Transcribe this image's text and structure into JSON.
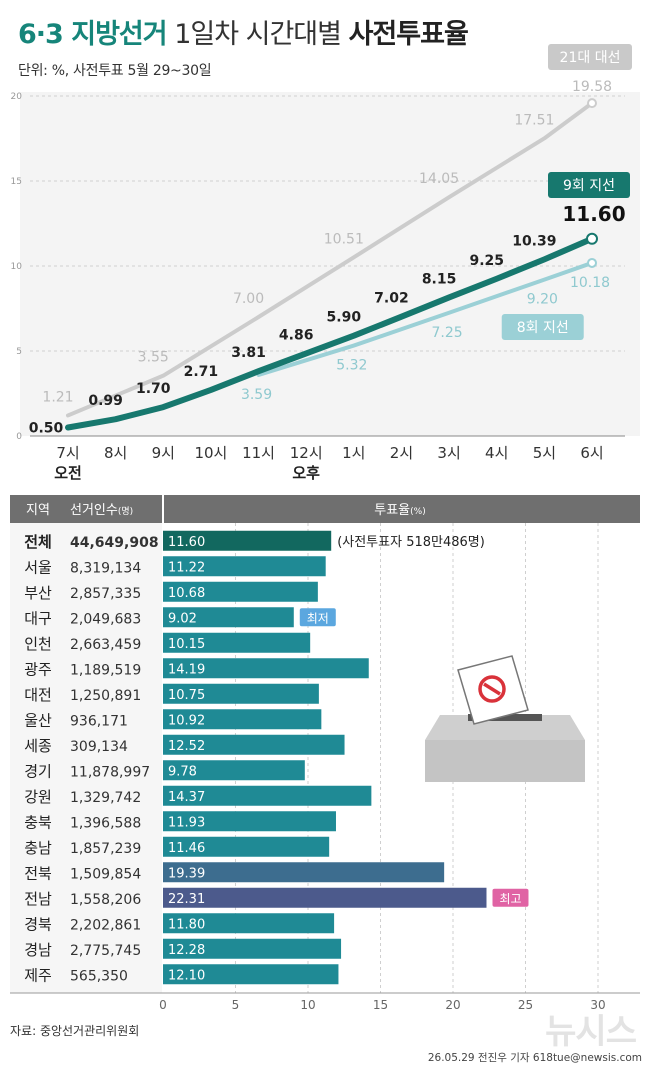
{
  "header": {
    "title_part1": "6·3 지방선거",
    "title_part2": "1일차 시간대별",
    "title_part3": "사전투표율",
    "subtitle": "단위: %, 사전투표 5월 29~30일"
  },
  "colors": {
    "accent": "#16857a",
    "series_9": "#17786e",
    "series_8": "#9bd0d6",
    "series_21": "#cccccc",
    "badge_low": "#5ba7df",
    "badge_high": "#e063a4"
  },
  "chart_data": [
    {
      "type": "line",
      "x": [
        "7시",
        "8시",
        "9시",
        "10시",
        "11시",
        "12시",
        "1시",
        "2시",
        "3시",
        "4시",
        "5시",
        "6시"
      ],
      "x_sublabels": [
        {
          "index": 0,
          "label": "오전"
        },
        {
          "index": 5,
          "label": "오후"
        }
      ],
      "ylim": [
        0,
        20
      ],
      "yticks": [
        0,
        5,
        10,
        15,
        20
      ],
      "series": [
        {
          "name": "21대 대선",
          "values": [
            1.21,
            null,
            3.55,
            null,
            7.0,
            null,
            10.51,
            null,
            14.05,
            null,
            17.51,
            19.58
          ]
        },
        {
          "name": "9회 지선",
          "values": [
            0.5,
            0.99,
            1.7,
            2.71,
            3.81,
            4.86,
            5.9,
            7.02,
            8.15,
            9.25,
            10.39,
            11.6
          ]
        },
        {
          "name": "8회 지선",
          "values": [
            null,
            null,
            null,
            null,
            3.59,
            null,
            5.32,
            null,
            7.25,
            null,
            9.2,
            10.18
          ]
        }
      ]
    },
    {
      "type": "bar",
      "headers": {
        "region": "지역",
        "voters": "선거인수",
        "voters_unit": "(명)",
        "rate": "투표율",
        "rate_unit": "(%)"
      },
      "xlim": [
        0,
        30
      ],
      "xticks": [
        0,
        5,
        10,
        15,
        20,
        25,
        30
      ],
      "rows": [
        {
          "region": "전체",
          "voters": "44,649,908",
          "value": 11.6,
          "note": "(사전투표자 518만486명)"
        },
        {
          "region": "서울",
          "voters": "8,319,134",
          "value": 11.22
        },
        {
          "region": "부산",
          "voters": "2,857,335",
          "value": 10.68
        },
        {
          "region": "대구",
          "voters": "2,049,683",
          "value": 9.02,
          "badge": "최저"
        },
        {
          "region": "인천",
          "voters": "2,663,459",
          "value": 10.15
        },
        {
          "region": "광주",
          "voters": "1,189,519",
          "value": 14.19
        },
        {
          "region": "대전",
          "voters": "1,250,891",
          "value": 10.75
        },
        {
          "region": "울산",
          "voters": "936,171",
          "value": 10.92
        },
        {
          "region": "세종",
          "voters": "309,134",
          "value": 12.52
        },
        {
          "region": "경기",
          "voters": "11,878,997",
          "value": 9.78
        },
        {
          "region": "강원",
          "voters": "1,329,742",
          "value": 14.37
        },
        {
          "region": "충북",
          "voters": "1,396,588",
          "value": 11.93
        },
        {
          "region": "충남",
          "voters": "1,857,239",
          "value": 11.46
        },
        {
          "region": "전북",
          "voters": "1,509,854",
          "value": 19.39
        },
        {
          "region": "전남",
          "voters": "1,558,206",
          "value": 22.31,
          "badge": "최고"
        },
        {
          "region": "경북",
          "voters": "2,202,861",
          "value": 11.8
        },
        {
          "region": "경남",
          "voters": "2,775,745",
          "value": 12.28
        },
        {
          "region": "제주",
          "voters": "565,350",
          "value": 12.1
        }
      ]
    }
  ],
  "footer": {
    "source": "자료: 중앙선거관리위원회",
    "credit": "26.05.29 전진우 기자 618tue@newsis.com",
    "watermark": "뉴시스"
  }
}
